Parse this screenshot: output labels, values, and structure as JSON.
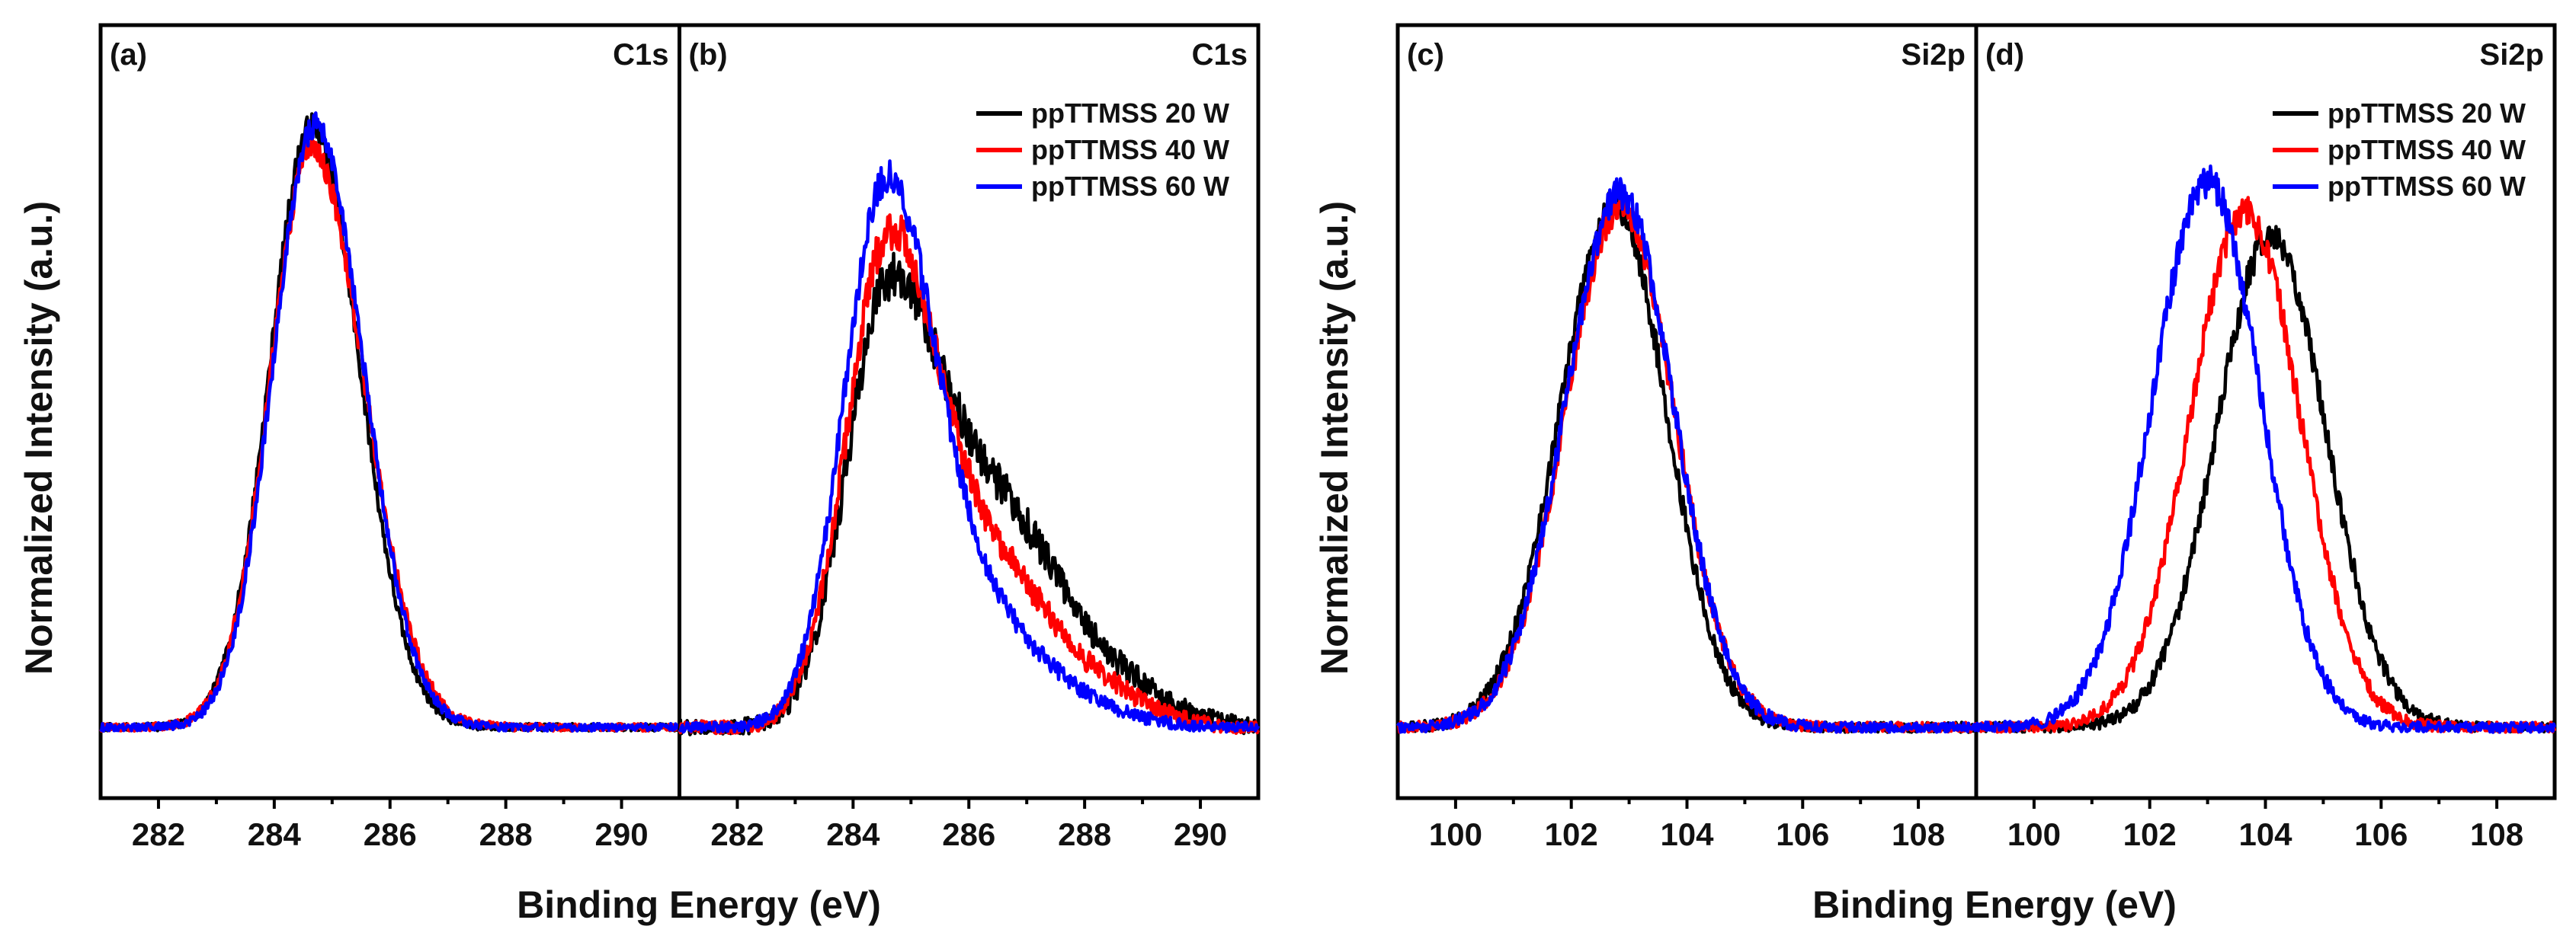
{
  "chart_data": [
    {
      "type": "line",
      "id": "c1s",
      "xlabel": "Binding Energy (eV)",
      "ylabel": "Normalized Intensity (a.u.)",
      "xlim": [
        281,
        291
      ],
      "panels": [
        {
          "label": "(a)",
          "element": "C1s",
          "xticks": [
            282,
            284,
            286,
            288,
            290
          ],
          "legend": false,
          "series": [
            {
              "name": "ppTTMSS 20 W",
              "color": "#000000",
              "center": 284.65,
              "sigma_low": 0.72,
              "sigma_high": 0.82,
              "peak": 0.97,
              "noise": 0.006
            },
            {
              "name": "ppTTMSS 40 W",
              "color": "#ff0000",
              "center": 284.65,
              "sigma_low": 0.72,
              "sigma_high": 0.9,
              "peak": 0.93,
              "noise": 0.006
            },
            {
              "name": "ppTTMSS 60 W",
              "color": "#0000ff",
              "center": 284.7,
              "sigma_low": 0.72,
              "sigma_high": 0.84,
              "peak": 0.97,
              "noise": 0.006
            }
          ]
        },
        {
          "label": "(b)",
          "element": "C1s",
          "xticks": [
            282,
            284,
            286,
            288,
            290
          ],
          "legend": true,
          "series": [
            {
              "name": "ppTTMSS 20 W",
              "color": "#000000",
              "center": 284.6,
              "sigma_low": 0.72,
              "sigma_high": 0.9,
              "peak": 0.68,
              "shoulder": {
                "center": 286.6,
                "sigma": 1.0,
                "amp": 0.32
              },
              "tail": {
                "center": 288.6,
                "sigma": 0.9,
                "amp": 0.06
              },
              "noise": 0.012
            },
            {
              "name": "ppTTMSS 40 W",
              "color": "#ff0000",
              "center": 284.6,
              "sigma_low": 0.72,
              "sigma_high": 0.85,
              "peak": 0.76,
              "shoulder": {
                "center": 286.5,
                "sigma": 1.0,
                "amp": 0.24
              },
              "tail": {
                "center": 288.5,
                "sigma": 0.8,
                "amp": 0.04
              },
              "noise": 0.01
            },
            {
              "name": "ppTTMSS 60 W",
              "color": "#0000ff",
              "center": 284.55,
              "sigma_low": 0.72,
              "sigma_high": 0.85,
              "peak": 0.85,
              "shoulder": {
                "center": 286.3,
                "sigma": 1.0,
                "amp": 0.16
              },
              "tail": {
                "center": 288.2,
                "sigma": 0.8,
                "amp": 0.02
              },
              "noise": 0.008
            }
          ]
        }
      ]
    },
    {
      "type": "line",
      "id": "si2p",
      "xlabel": "Binding Energy (eV)",
      "ylabel": "Normalized Intensity (a.u.)",
      "xlim": [
        99,
        109
      ],
      "panels": [
        {
          "label": "(c)",
          "element": "Si2p",
          "xticks": [
            100,
            102,
            104,
            106,
            108
          ],
          "legend": false,
          "series": [
            {
              "name": "ppTTMSS 20 W",
              "color": "#000000",
              "center": 102.75,
              "sigma_low": 0.95,
              "sigma_high": 0.9,
              "peak": 0.84,
              "noise": 0.008
            },
            {
              "name": "ppTTMSS 40 W",
              "color": "#ff0000",
              "center": 102.85,
              "sigma_low": 0.95,
              "sigma_high": 0.93,
              "peak": 0.84,
              "noise": 0.008
            },
            {
              "name": "ppTTMSS 60 W",
              "color": "#0000ff",
              "center": 102.85,
              "sigma_low": 0.95,
              "sigma_high": 0.92,
              "peak": 0.86,
              "noise": 0.008
            }
          ]
        },
        {
          "label": "(d)",
          "element": "Si2p",
          "xticks": [
            100,
            102,
            104,
            106,
            108
          ],
          "legend": true,
          "series": [
            {
              "name": "ppTTMSS 20 W",
              "color": "#000000",
              "center": 104.1,
              "sigma_low": 0.95,
              "sigma_high": 0.95,
              "peak": 0.79,
              "noise": 0.008
            },
            {
              "name": "ppTTMSS 40 W",
              "color": "#ff0000",
              "center": 103.65,
              "sigma_low": 0.95,
              "sigma_high": 0.95,
              "peak": 0.83,
              "noise": 0.008
            },
            {
              "name": "ppTTMSS 60 W",
              "color": "#0000ff",
              "center": 103.0,
              "sigma_low": 0.95,
              "sigma_high": 0.92,
              "peak": 0.88,
              "noise": 0.008
            }
          ]
        }
      ]
    }
  ]
}
